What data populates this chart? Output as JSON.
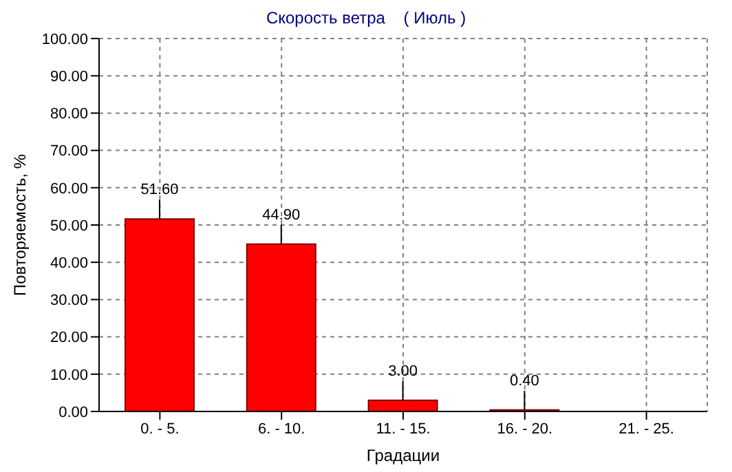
{
  "chart_data": {
    "type": "bar",
    "title": "Скорость ветра    ( Июль )",
    "xlabel": "Градации",
    "ylabel": "Повторяемость, %",
    "categories": [
      "0. - 5.",
      "6. - 10.",
      "11. - 15.",
      "16. - 20.",
      "21. - 25."
    ],
    "values": [
      51.6,
      44.9,
      3.0,
      0.4,
      0
    ],
    "value_labels": [
      "51.60",
      "44.90",
      "3.00",
      "0.40",
      null
    ],
    "color": "#ff0000",
    "ylim": [
      0,
      100
    ],
    "yticks": [
      {
        "value": 0,
        "label": "0.00"
      },
      {
        "value": 10,
        "label": "10.00"
      },
      {
        "value": 20,
        "label": "20.00"
      },
      {
        "value": 30,
        "label": "30.00"
      },
      {
        "value": 40,
        "label": "40.00"
      },
      {
        "value": 50,
        "label": "50.00"
      },
      {
        "value": 60,
        "label": "60.00"
      },
      {
        "value": 70,
        "label": "70.00"
      },
      {
        "value": 80,
        "label": "80.00"
      },
      {
        "value": 90,
        "label": "90.00"
      },
      {
        "value": 100,
        "label": "100.00"
      }
    ],
    "grid": true,
    "legend": false
  }
}
